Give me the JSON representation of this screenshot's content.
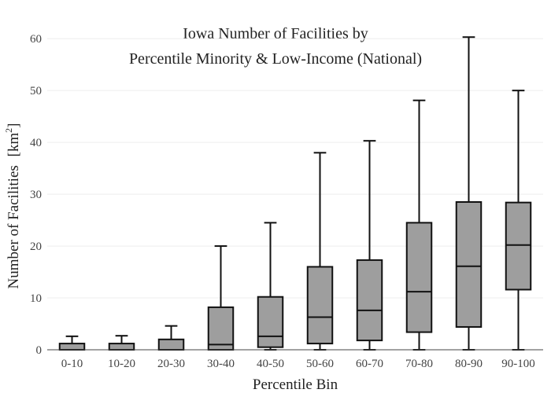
{
  "chart_data": {
    "type": "box",
    "title_lines": [
      "Iowa Number of Facilities by",
      "Percentile Minority & Low-Income (National)"
    ],
    "xlabel": "Percentile Bin",
    "ylabel": "Number of Facilities",
    "ylabel_unit_base": "[km",
    "ylabel_unit_sup": "2",
    "ylabel_unit_close": "]",
    "ylim": [
      0,
      62
    ],
    "yticks": [
      0,
      10,
      20,
      30,
      40,
      50,
      60
    ],
    "grid": true,
    "box_fill": "#9e9e9e",
    "line_color": "#111111",
    "categories": [
      "0-10",
      "10-20",
      "20-30",
      "30-40",
      "40-50",
      "50-60",
      "60-70",
      "70-80",
      "80-90",
      "90-100"
    ],
    "boxes": [
      {
        "min": 0,
        "q1": 0,
        "median": 0,
        "q3": 1.2,
        "max": 2.6
      },
      {
        "min": 0,
        "q1": 0,
        "median": 0,
        "q3": 1.2,
        "max": 2.7
      },
      {
        "min": 0,
        "q1": 0,
        "median": 0,
        "q3": 2.0,
        "max": 4.6
      },
      {
        "min": 0,
        "q1": 0,
        "median": 1.0,
        "q3": 8.2,
        "max": 20.0
      },
      {
        "min": 0,
        "q1": 0.5,
        "median": 2.6,
        "q3": 10.2,
        "max": 24.5
      },
      {
        "min": 0,
        "q1": 1.2,
        "median": 6.3,
        "q3": 16.0,
        "max": 38.0
      },
      {
        "min": 0,
        "q1": 1.8,
        "median": 7.6,
        "q3": 17.3,
        "max": 40.3
      },
      {
        "min": 0,
        "q1": 3.4,
        "median": 11.2,
        "q3": 24.5,
        "max": 48.1
      },
      {
        "min": 0,
        "q1": 4.4,
        "median": 16.1,
        "q3": 28.5,
        "max": 60.3
      },
      {
        "min": 0,
        "q1": 11.6,
        "median": 20.2,
        "q3": 28.4,
        "max": 50.0
      }
    ]
  }
}
